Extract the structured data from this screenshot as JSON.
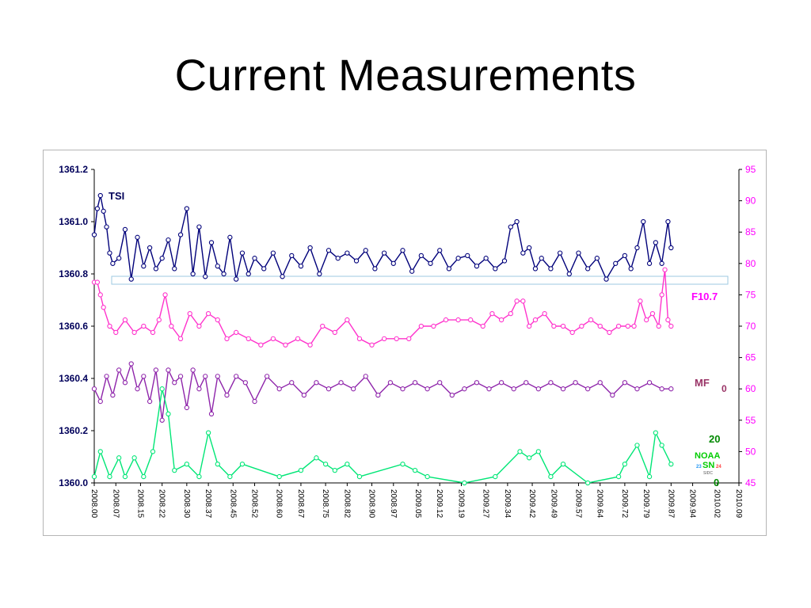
{
  "slide": {
    "title": "Current Measurements"
  },
  "chart_data": {
    "type": "line",
    "title": "",
    "grid": false,
    "x_ticks": [
      "2008.00",
      "2008.07",
      "2008.15",
      "2008.22",
      "2008.30",
      "2008.37",
      "2008.45",
      "2008.52",
      "2008.60",
      "2008.67",
      "2008.75",
      "2008.82",
      "2008.90",
      "2008.97",
      "2009.05",
      "2009.12",
      "2009.19",
      "2009.27",
      "2009.34",
      "2009.42",
      "2009.49",
      "2009.57",
      "2009.64",
      "2009.72",
      "2009.79",
      "2009.87",
      "2009.94",
      "2010.02",
      "2010.09"
    ],
    "xlim": [
      2008.0,
      2010.09
    ],
    "left_axis": {
      "ticks": [
        "1361.2",
        "1361.0",
        "1360.8",
        "1360.6",
        "1360.4",
        "1360.2",
        "1360.0"
      ],
      "ylim": [
        1360.0,
        1361.2
      ]
    },
    "right_axis": {
      "ticks": [
        "95",
        "90",
        "85",
        "80",
        "75",
        "70",
        "65",
        "60",
        "55",
        "50",
        "45"
      ],
      "ylim": [
        45,
        95
      ]
    },
    "series": [
      {
        "name": "TSI",
        "axis": "left",
        "color": "#00007a",
        "x": [
          2008.0,
          2008.01,
          2008.02,
          2008.03,
          2008.04,
          2008.05,
          2008.06,
          2008.08,
          2008.1,
          2008.12,
          2008.14,
          2008.16,
          2008.18,
          2008.2,
          2008.22,
          2008.24,
          2008.26,
          2008.28,
          2008.3,
          2008.32,
          2008.34,
          2008.36,
          2008.38,
          2008.4,
          2008.42,
          2008.44,
          2008.46,
          2008.48,
          2008.5,
          2008.52,
          2008.55,
          2008.58,
          2008.61,
          2008.64,
          2008.67,
          2008.7,
          2008.73,
          2008.76,
          2008.79,
          2008.82,
          2008.85,
          2008.88,
          2008.91,
          2008.94,
          2008.97,
          2009.0,
          2009.03,
          2009.06,
          2009.09,
          2009.12,
          2009.15,
          2009.18,
          2009.21,
          2009.24,
          2009.27,
          2009.3,
          2009.33,
          2009.35,
          2009.37,
          2009.39,
          2009.41,
          2009.43,
          2009.45,
          2009.48,
          2009.51,
          2009.54,
          2009.57,
          2009.6,
          2009.63,
          2009.66,
          2009.69,
          2009.72,
          2009.74,
          2009.76,
          2009.78,
          2009.8,
          2009.82,
          2009.84,
          2009.86,
          2009.87
        ],
        "values": [
          1360.95,
          1361.05,
          1361.1,
          1361.04,
          1360.98,
          1360.88,
          1360.84,
          1360.86,
          1360.97,
          1360.78,
          1360.94,
          1360.83,
          1360.9,
          1360.82,
          1360.86,
          1360.93,
          1360.82,
          1360.95,
          1361.05,
          1360.8,
          1360.98,
          1360.79,
          1360.92,
          1360.83,
          1360.8,
          1360.94,
          1360.78,
          1360.88,
          1360.8,
          1360.86,
          1360.82,
          1360.88,
          1360.79,
          1360.87,
          1360.83,
          1360.9,
          1360.8,
          1360.89,
          1360.86,
          1360.88,
          1360.85,
          1360.89,
          1360.82,
          1360.88,
          1360.84,
          1360.89,
          1360.81,
          1360.87,
          1360.84,
          1360.89,
          1360.82,
          1360.86,
          1360.87,
          1360.83,
          1360.86,
          1360.82,
          1360.85,
          1360.98,
          1361.0,
          1360.88,
          1360.9,
          1360.82,
          1360.86,
          1360.82,
          1360.88,
          1360.8,
          1360.88,
          1360.82,
          1360.86,
          1360.78,
          1360.84,
          1360.87,
          1360.82,
          1360.9,
          1361.0,
          1360.84,
          1360.92,
          1360.84,
          1361.0,
          1360.9
        ]
      },
      {
        "name": "F10.7",
        "axis": "right",
        "color": "#ff33cc",
        "x": [
          2008.0,
          2008.01,
          2008.02,
          2008.03,
          2008.05,
          2008.07,
          2008.1,
          2008.13,
          2008.16,
          2008.19,
          2008.21,
          2008.23,
          2008.25,
          2008.28,
          2008.31,
          2008.34,
          2008.37,
          2008.4,
          2008.43,
          2008.46,
          2008.5,
          2008.54,
          2008.58,
          2008.62,
          2008.66,
          2008.7,
          2008.74,
          2008.78,
          2008.82,
          2008.86,
          2008.9,
          2008.94,
          2008.98,
          2009.02,
          2009.06,
          2009.1,
          2009.14,
          2009.18,
          2009.22,
          2009.26,
          2009.29,
          2009.32,
          2009.35,
          2009.37,
          2009.39,
          2009.41,
          2009.43,
          2009.46,
          2009.49,
          2009.52,
          2009.55,
          2009.58,
          2009.61,
          2009.64,
          2009.67,
          2009.7,
          2009.73,
          2009.75,
          2009.77,
          2009.79,
          2009.81,
          2009.83,
          2009.84,
          2009.85,
          2009.86,
          2009.87
        ],
        "values": [
          77,
          77,
          75,
          73,
          70,
          69,
          71,
          69,
          70,
          69,
          71,
          75,
          70,
          68,
          72,
          70,
          72,
          71,
          68,
          69,
          68,
          67,
          68,
          67,
          68,
          67,
          70,
          69,
          71,
          68,
          67,
          68,
          68,
          68,
          70,
          70,
          71,
          71,
          71,
          70,
          72,
          71,
          72,
          74,
          74,
          70,
          71,
          72,
          70,
          70,
          69,
          70,
          71,
          70,
          69,
          70,
          70,
          70,
          74,
          71,
          72,
          70,
          75,
          79,
          71,
          70
        ]
      },
      {
        "name": "MF",
        "axis": "right",
        "color": "#8e24aa",
        "x": [
          2008.0,
          2008.02,
          2008.04,
          2008.06,
          2008.08,
          2008.1,
          2008.12,
          2008.14,
          2008.16,
          2008.18,
          2008.2,
          2008.22,
          2008.24,
          2008.26,
          2008.28,
          2008.3,
          2008.32,
          2008.34,
          2008.36,
          2008.38,
          2008.4,
          2008.43,
          2008.46,
          2008.49,
          2008.52,
          2008.56,
          2008.6,
          2008.64,
          2008.68,
          2008.72,
          2008.76,
          2008.8,
          2008.84,
          2008.88,
          2008.92,
          2008.96,
          2009.0,
          2009.04,
          2009.08,
          2009.12,
          2009.16,
          2009.2,
          2009.24,
          2009.28,
          2009.32,
          2009.36,
          2009.4,
          2009.44,
          2009.48,
          2009.52,
          2009.56,
          2009.6,
          2009.64,
          2009.68,
          2009.72,
          2009.76,
          2009.8,
          2009.84,
          2009.87
        ],
        "values": [
          60,
          58,
          62,
          59,
          63,
          61,
          64,
          60,
          62,
          58,
          63,
          55,
          63,
          61,
          62,
          57,
          63,
          60,
          62,
          56,
          62,
          59,
          62,
          61,
          58,
          62,
          60,
          61,
          59,
          61,
          60,
          61,
          60,
          62,
          59,
          61,
          60,
          61,
          60,
          61,
          59,
          60,
          61,
          60,
          61,
          60,
          61,
          60,
          61,
          60,
          61,
          60,
          61,
          59,
          61,
          60,
          61,
          60,
          60
        ]
      },
      {
        "name": "NOAA SN",
        "axis": "right",
        "color": "#00e676",
        "x": [
          2008.0,
          2008.02,
          2008.05,
          2008.08,
          2008.1,
          2008.13,
          2008.16,
          2008.19,
          2008.22,
          2008.24,
          2008.26,
          2008.3,
          2008.34,
          2008.37,
          2008.4,
          2008.44,
          2008.48,
          2008.6,
          2008.67,
          2008.72,
          2008.75,
          2008.78,
          2008.82,
          2008.86,
          2009.0,
          2009.04,
          2009.08,
          2009.2,
          2009.3,
          2009.38,
          2009.41,
          2009.44,
          2009.48,
          2009.52,
          2009.6,
          2009.7,
          2009.72,
          2009.76,
          2009.8,
          2009.82,
          2009.84,
          2009.87
        ],
        "values": [
          46,
          50,
          46,
          49,
          46,
          49,
          46,
          50,
          60,
          56,
          47,
          48,
          46,
          53,
          48,
          46,
          48,
          46,
          47,
          49,
          48,
          47,
          48,
          46,
          48,
          47,
          46,
          45,
          46,
          50,
          49,
          50,
          46,
          48,
          45,
          46,
          48,
          51,
          46,
          53,
          51,
          48
        ]
      }
    ],
    "annotations": {
      "noaa_value": "20",
      "noaa_zero": "0",
      "mf_zero": "0",
      "sidc": "SIDC",
      "sn_left": "23",
      "sn_right": "24"
    }
  },
  "colors": {
    "tsi": "#00007a",
    "f107": "#ff33cc",
    "mf": "#8e24aa",
    "sn": "#00e676",
    "left_axis_text": "#00005a",
    "right_axis_text": "#ff00ff",
    "mf_label": "#993366",
    "noaa_label": "#00aa00",
    "sn_left": "#2196f3",
    "sn_right": "#ff3b3b"
  }
}
